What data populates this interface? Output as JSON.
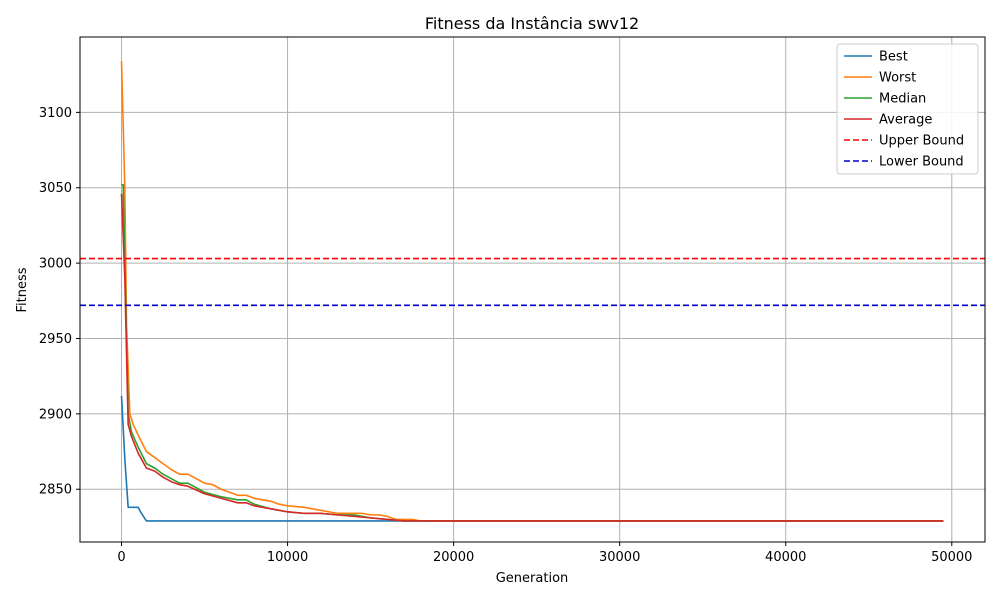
{
  "chart_data": {
    "type": "line",
    "title": "Fitness da Instância swv12",
    "xlabel": "Generation",
    "ylabel": "Fitness",
    "xlim": [
      -2500,
      52000
    ],
    "ylim": [
      2815,
      3150
    ],
    "xticks": [
      0,
      10000,
      20000,
      30000,
      40000,
      50000
    ],
    "yticks": [
      2850,
      2900,
      2950,
      3000,
      3050,
      3100
    ],
    "grid": true,
    "legend_position": "top-right",
    "series": [
      {
        "name": "Best",
        "color": "#1f77b4",
        "dash": "solid",
        "x": [
          0,
          200,
          400,
          600,
          800,
          1000,
          1200,
          1500,
          2000,
          5000,
          10000,
          20000,
          30000,
          40000,
          49500
        ],
        "y": [
          2912,
          2870,
          2838,
          2838,
          2838,
          2838,
          2834,
          2829,
          2829,
          2829,
          2829,
          2829,
          2829,
          2829,
          2829
        ]
      },
      {
        "name": "Worst",
        "color": "#ff7f0e",
        "dash": "solid",
        "x": [
          0,
          200,
          300,
          500,
          700,
          1000,
          1500,
          2000,
          2500,
          3000,
          3500,
          4000,
          4500,
          5000,
          5500,
          6000,
          6500,
          7000,
          7500,
          8000,
          9000,
          9500,
          10000,
          11000,
          12000,
          13000,
          14000,
          14500,
          15000,
          15500,
          16000,
          16500,
          17500,
          18000,
          20000,
          30000,
          40000,
          49500
        ],
        "y": [
          3134,
          3050,
          2960,
          2900,
          2893,
          2886,
          2875,
          2871,
          2867,
          2863,
          2860,
          2860,
          2857,
          2854,
          2853,
          2850,
          2848,
          2846,
          2846,
          2844,
          2842,
          2840,
          2839,
          2838,
          2836,
          2834,
          2834,
          2834,
          2833,
          2833,
          2832,
          2830,
          2830,
          2829,
          2829,
          2829,
          2829,
          2829
        ]
      },
      {
        "name": "Median",
        "color": "#2ca02c",
        "dash": "solid",
        "x": [
          0,
          100,
          200,
          400,
          600,
          1000,
          1500,
          2000,
          2500,
          3000,
          3500,
          4000,
          5000,
          6000,
          7000,
          7500,
          8000,
          9000,
          10000,
          11000,
          12000,
          13000,
          14000,
          15000,
          16000,
          17000,
          18000,
          20000,
          30000,
          40000,
          49500
        ],
        "y": [
          3052,
          3052,
          3000,
          2900,
          2888,
          2878,
          2867,
          2864,
          2860,
          2857,
          2854,
          2854,
          2848,
          2845,
          2843,
          2843,
          2840,
          2837,
          2835,
          2834,
          2834,
          2833,
          2833,
          2831,
          2830,
          2829,
          2829,
          2829,
          2829,
          2829,
          2829
        ]
      },
      {
        "name": "Average",
        "color": "#d62728",
        "dash": "solid",
        "x": [
          0,
          200,
          400,
          600,
          1000,
          1500,
          2000,
          2500,
          3000,
          3500,
          4000,
          5000,
          6000,
          7000,
          7500,
          8000,
          9000,
          10000,
          11000,
          12000,
          13000,
          14000,
          15000,
          16000,
          17000,
          18000,
          20000,
          30000,
          40000,
          49500
        ],
        "y": [
          3046,
          2990,
          2893,
          2885,
          2874,
          2864,
          2862,
          2858,
          2855,
          2853,
          2852,
          2847,
          2844,
          2841,
          2841,
          2839,
          2837,
          2835,
          2834,
          2834,
          2833,
          2832,
          2831,
          2830,
          2829,
          2829,
          2829,
          2829,
          2829,
          2829
        ]
      },
      {
        "name": "Upper Bound",
        "color": "#ff0000",
        "dash": "dashed",
        "hline": 3003
      },
      {
        "name": "Lower Bound",
        "color": "#0000cc",
        "dash": "dashed",
        "hline": 2972
      }
    ]
  }
}
